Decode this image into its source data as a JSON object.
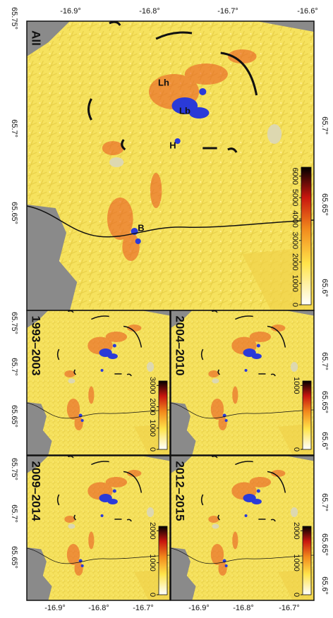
{
  "main_panel": {
    "label": "All",
    "annotations": [
      "Lh",
      "Lb",
      "H",
      "B"
    ],
    "colorbar_ticks": [
      0,
      1000,
      2000,
      3000,
      4000,
      5000,
      6000
    ]
  },
  "panels": [
    {
      "label": "1993–2003",
      "colorbar_ticks": [
        0,
        1000,
        2000,
        3000
      ]
    },
    {
      "label": "2004–2010",
      "colorbar_ticks": [
        0,
        1000
      ]
    },
    {
      "label": "2009–2014",
      "colorbar_ticks": [
        0,
        1000,
        2000
      ]
    },
    {
      "label": "2012–2015",
      "colorbar_ticks": [
        0,
        1000,
        2000
      ]
    }
  ],
  "top_axis_labels": [
    "-16.9°",
    "-16.8°",
    "-16.7°",
    "-16.6°"
  ],
  "left_axis_labels": [
    "65.75°",
    "65.7°",
    "65.65°",
    "65.75°",
    "65.7°",
    "65.65°",
    "65.75°",
    "65.7°",
    "65.65°"
  ],
  "right_axis_labels": [
    "65.7°",
    "65.65°",
    "65.6°",
    "65.7°",
    "65.65°",
    "65.6°",
    "65.7°",
    "65.65°",
    "65.6°"
  ],
  "bottom_axis_labels": [
    "-16.9°",
    "-16.8°",
    "-16.7°",
    "-16.9°",
    "-16.8°",
    "-16.7°"
  ]
}
